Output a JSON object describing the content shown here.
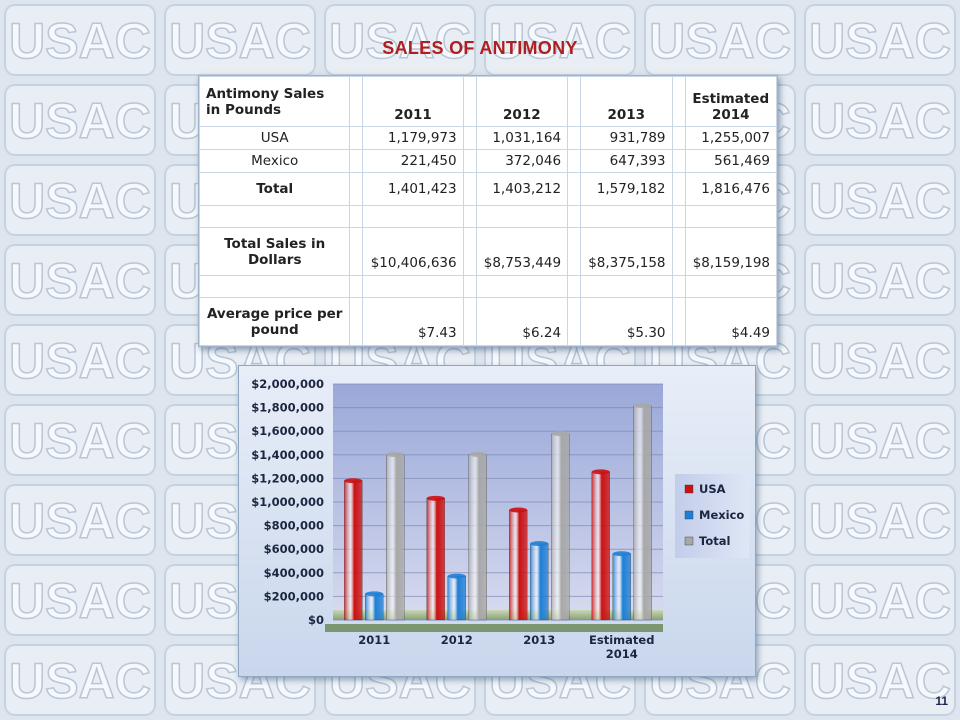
{
  "slide": {
    "title": "SALES OF ANTIMONY",
    "page_number": "11",
    "watermark_text": "USAC"
  },
  "table": {
    "header_label_line1": "Antimony Sales",
    "header_label_line2": "in Pounds",
    "columns": [
      "2011",
      "2012",
      "2013",
      "Estimated 2014"
    ],
    "col4_line1": "Estimated",
    "col4_line2": "2014",
    "rows": [
      {
        "label": "USA",
        "values": [
          "1,179,973",
          "1,031,164",
          "931,789",
          "1,255,007"
        ]
      },
      {
        "label": "Mexico",
        "values": [
          "221,450",
          "372,046",
          "647,393",
          "561,469"
        ]
      },
      {
        "label": "Total",
        "values": [
          "1,401,423",
          "1,403,212",
          "1,579,182",
          "1,816,476"
        ]
      }
    ],
    "dollars_label_line1": "Total Sales in",
    "dollars_label_line2": "Dollars",
    "dollars_values": [
      "$10,406,636",
      "$8,753,449",
      "$8,375,158",
      "$8,159,198"
    ],
    "price_label_line1": "Average price per",
    "price_label_line2": "pound",
    "price_values": [
      "$7.43",
      "$6.24",
      "$5.30",
      "$4.49"
    ]
  },
  "chart_data": {
    "type": "bar",
    "categories": [
      "2011",
      "2012",
      "2013",
      "Estimated 2014"
    ],
    "series": [
      {
        "name": "USA",
        "values": [
          1179973,
          1031164,
          931789,
          1255007
        ],
        "color": "#cc1111"
      },
      {
        "name": "Mexico",
        "values": [
          221450,
          372046,
          647393,
          561469
        ],
        "color": "#1f7fd6"
      },
      {
        "name": "Total",
        "values": [
          1401423,
          1403212,
          1579182,
          1816476
        ],
        "color": "#a8a8a8"
      }
    ],
    "ylim": [
      0,
      2000000
    ],
    "yticks": [
      0,
      200000,
      400000,
      600000,
      800000,
      1000000,
      1200000,
      1400000,
      1600000,
      1800000,
      2000000
    ],
    "ytick_labels": [
      "$0",
      "$200,000",
      "$400,000",
      "$600,000",
      "$800,000",
      "$1,000,000",
      "$1,200,000",
      "$1,400,000",
      "$1,600,000",
      "$1,800,000",
      "$2,000,000"
    ],
    "legend_position": "right",
    "grid": true
  }
}
